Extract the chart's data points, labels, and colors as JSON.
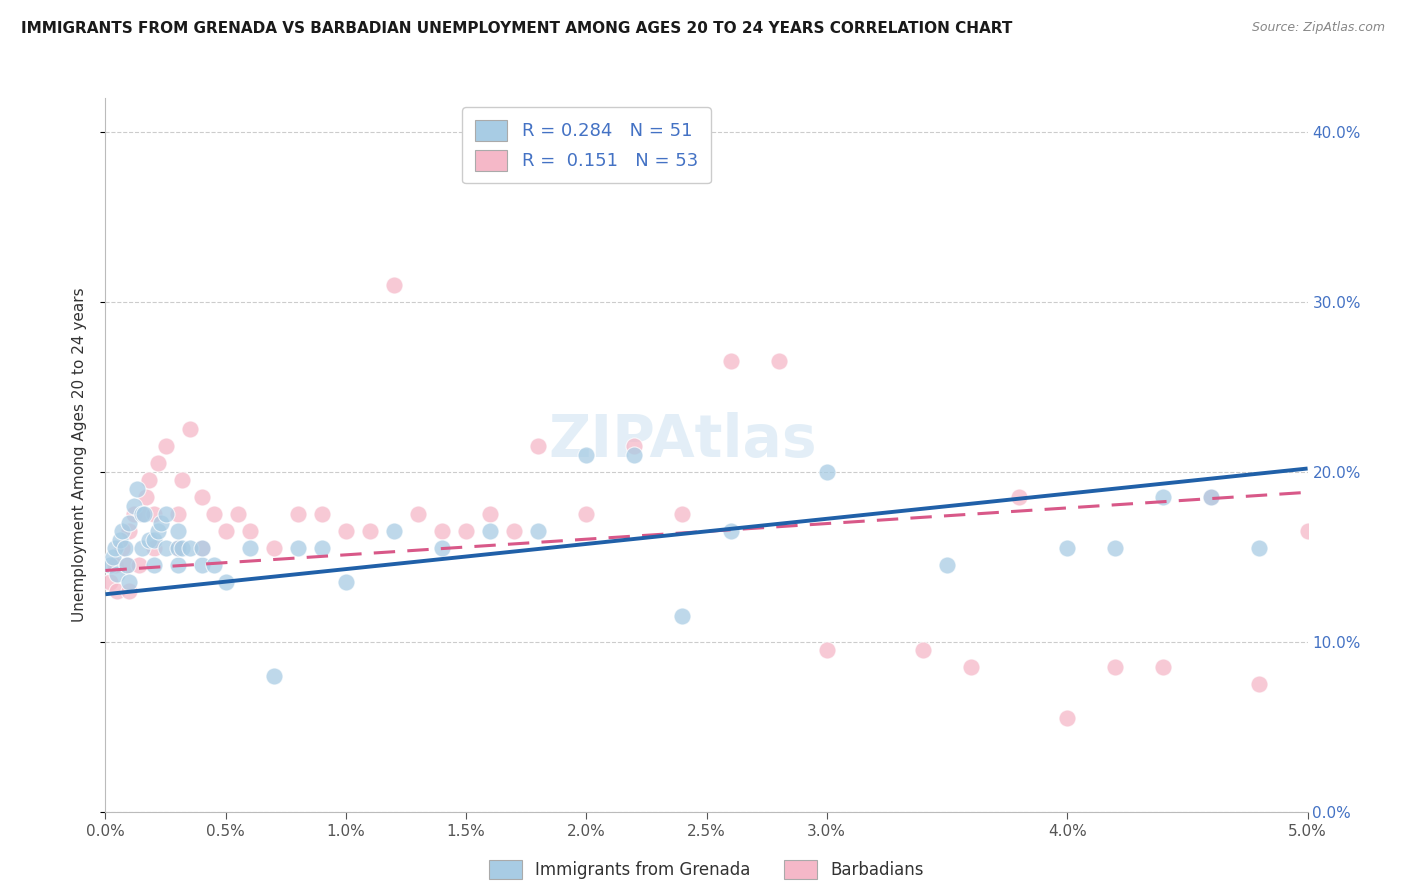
{
  "title": "IMMIGRANTS FROM GRENADA VS BARBADIAN UNEMPLOYMENT AMONG AGES 20 TO 24 YEARS CORRELATION CHART",
  "source": "Source: ZipAtlas.com",
  "ylabel": "Unemployment Among Ages 20 to 24 years",
  "legend_label_blue": "Immigrants from Grenada",
  "legend_label_pink": "Barbadians",
  "legend_r_blue": "R = 0.284",
  "legend_n_blue": "N = 51",
  "legend_r_pink": "R =  0.151",
  "legend_n_pink": "N = 53",
  "blue_color": "#a8cce4",
  "pink_color": "#f5b8c8",
  "blue_line_color": "#2060a8",
  "pink_line_color": "#d85888",
  "background_color": "#ffffff",
  "xlim": [
    0.0,
    0.05
  ],
  "ylim": [
    0.0,
    0.42
  ],
  "ytick_color": "#4472c4",
  "xtick_color": "#555555",
  "blue_scatter_x": [
    0.0002,
    0.0003,
    0.0004,
    0.0005,
    0.0006,
    0.0007,
    0.0008,
    0.0009,
    0.001,
    0.001,
    0.0012,
    0.0013,
    0.0015,
    0.0015,
    0.0016,
    0.0018,
    0.002,
    0.002,
    0.0022,
    0.0023,
    0.0025,
    0.0025,
    0.003,
    0.003,
    0.003,
    0.0032,
    0.0035,
    0.004,
    0.004,
    0.0045,
    0.005,
    0.006,
    0.007,
    0.008,
    0.009,
    0.01,
    0.012,
    0.014,
    0.016,
    0.018,
    0.02,
    0.022,
    0.024,
    0.026,
    0.03,
    0.035,
    0.04,
    0.042,
    0.044,
    0.046,
    0.048
  ],
  "blue_scatter_y": [
    0.145,
    0.15,
    0.155,
    0.14,
    0.16,
    0.165,
    0.155,
    0.145,
    0.135,
    0.17,
    0.18,
    0.19,
    0.155,
    0.175,
    0.175,
    0.16,
    0.145,
    0.16,
    0.165,
    0.17,
    0.155,
    0.175,
    0.145,
    0.155,
    0.165,
    0.155,
    0.155,
    0.145,
    0.155,
    0.145,
    0.135,
    0.155,
    0.08,
    0.155,
    0.155,
    0.135,
    0.165,
    0.155,
    0.165,
    0.165,
    0.21,
    0.21,
    0.115,
    0.165,
    0.2,
    0.145,
    0.155,
    0.155,
    0.185,
    0.185,
    0.155
  ],
  "pink_scatter_x": [
    0.0002,
    0.0004,
    0.0005,
    0.0007,
    0.0009,
    0.001,
    0.001,
    0.0012,
    0.0014,
    0.0015,
    0.0017,
    0.0018,
    0.002,
    0.002,
    0.0022,
    0.0025,
    0.003,
    0.003,
    0.0032,
    0.0035,
    0.004,
    0.004,
    0.0045,
    0.005,
    0.0055,
    0.006,
    0.007,
    0.008,
    0.009,
    0.01,
    0.011,
    0.012,
    0.013,
    0.014,
    0.015,
    0.016,
    0.017,
    0.018,
    0.02,
    0.022,
    0.024,
    0.026,
    0.028,
    0.03,
    0.034,
    0.036,
    0.038,
    0.04,
    0.042,
    0.044,
    0.046,
    0.048,
    0.05
  ],
  "pink_scatter_y": [
    0.135,
    0.145,
    0.13,
    0.155,
    0.145,
    0.13,
    0.165,
    0.175,
    0.145,
    0.175,
    0.185,
    0.195,
    0.155,
    0.175,
    0.205,
    0.215,
    0.155,
    0.175,
    0.195,
    0.225,
    0.155,
    0.185,
    0.175,
    0.165,
    0.175,
    0.165,
    0.155,
    0.175,
    0.175,
    0.165,
    0.165,
    0.31,
    0.175,
    0.165,
    0.165,
    0.175,
    0.165,
    0.215,
    0.175,
    0.215,
    0.175,
    0.265,
    0.265,
    0.095,
    0.095,
    0.085,
    0.185,
    0.055,
    0.085,
    0.085,
    0.185,
    0.075,
    0.165
  ],
  "blue_trendline_x": [
    0.0,
    0.05
  ],
  "blue_trendline_y": [
    0.128,
    0.202
  ],
  "pink_trendline_x": [
    0.0,
    0.05
  ],
  "pink_trendline_y": [
    0.142,
    0.188
  ]
}
